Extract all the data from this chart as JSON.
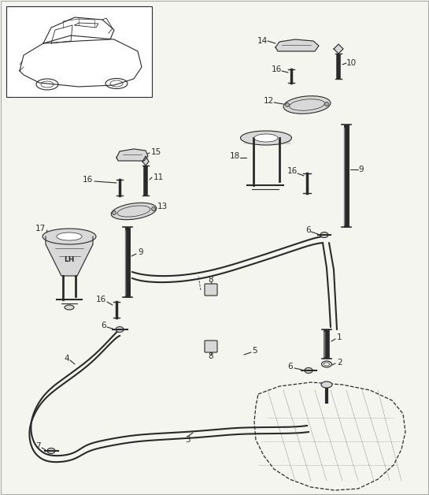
{
  "bg_color": "#f5f5f0",
  "line_color": "#2a2a2a",
  "fig_width": 5.45,
  "fig_height": 6.28,
  "dpi": 100
}
